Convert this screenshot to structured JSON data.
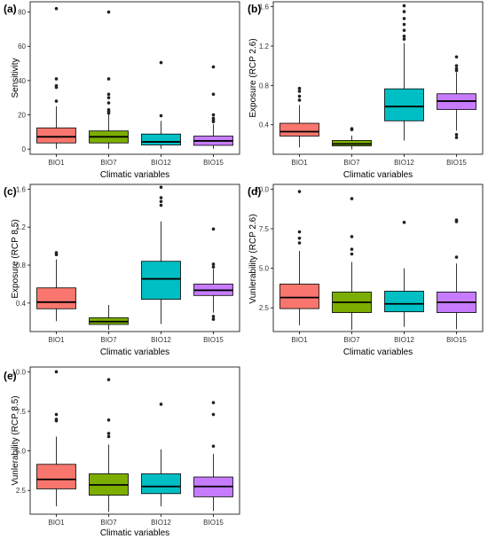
{
  "colors": {
    "BIO1": "#f8766d",
    "BIO7": "#7cae00",
    "BIO12": "#00bfc4",
    "BIO15": "#c77cff",
    "outline": "#000000",
    "points": "#222222"
  },
  "chart_data": [
    {
      "panel": "(a)",
      "type": "boxplot",
      "xlabel": "Climatic variables",
      "ylabel": "Sensitivity",
      "categories": [
        "BIO1",
        "BIO7",
        "BIO12",
        "BIO15"
      ],
      "ylim": [
        -3,
        86
      ],
      "yticks": [
        0,
        20,
        40,
        60,
        80
      ],
      "ytick_labels": [
        "0",
        "20",
        "40",
        "60",
        "80"
      ],
      "grid": false,
      "boxes": [
        {
          "q1": 3.6,
          "median": 7.2,
          "q3": 12.4,
          "whisker_low": 0.2,
          "whisker_high": 25.0,
          "outliers": [
            28,
            36,
            37,
            41,
            82
          ]
        },
        {
          "q1": 3.6,
          "median": 7.2,
          "q3": 10.6,
          "whisker_low": 0.2,
          "whisker_high": 20.0,
          "outliers": [
            21,
            22,
            23,
            27,
            30,
            32,
            41,
            80
          ]
        },
        {
          "q1": 2.4,
          "median": 4.2,
          "q3": 8.8,
          "whisker_low": 0.2,
          "whisker_high": 16.5,
          "outliers": [
            19.5,
            50.5
          ]
        },
        {
          "q1": 2.2,
          "median": 4.8,
          "q3": 7.6,
          "whisker_low": 0.2,
          "whisker_high": 14.5,
          "outliers": [
            16,
            17,
            18,
            20,
            32,
            48
          ]
        }
      ]
    },
    {
      "panel": "(b)",
      "type": "boxplot",
      "xlabel": "Climatic variables",
      "ylabel": "Exposure (RCP 2.6)",
      "categories": [
        "BIO1",
        "BIO7",
        "BIO12",
        "BIO15"
      ],
      "ylim": [
        0.1,
        1.65
      ],
      "yticks": [
        0.4,
        0.8,
        1.2,
        1.6
      ],
      "ytick_labels": [
        "0.4",
        "0.8",
        "1.2",
        "1.6"
      ],
      "grid": false,
      "boxes": [
        {
          "q1": 0.285,
          "median": 0.33,
          "q3": 0.415,
          "whisker_low": 0.17,
          "whisker_high": 0.6,
          "outliers": [
            0.65,
            0.69,
            0.74,
            0.77
          ]
        },
        {
          "q1": 0.185,
          "median": 0.205,
          "q3": 0.24,
          "whisker_low": 0.15,
          "whisker_high": 0.29,
          "outliers": [
            0.35,
            0.36
          ]
        },
        {
          "q1": 0.44,
          "median": 0.585,
          "q3": 0.765,
          "whisker_low": 0.24,
          "whisker_high": 1.23,
          "outliers": [
            1.27,
            1.3,
            1.36,
            1.42,
            1.48,
            1.55,
            1.61
          ]
        },
        {
          "q1": 0.555,
          "median": 0.64,
          "q3": 0.715,
          "whisker_low": 0.34,
          "whisker_high": 0.93,
          "outliers": [
            0.27,
            0.3,
            0.95,
            0.97,
            1.0,
            1.09
          ]
        }
      ]
    },
    {
      "panel": "(c)",
      "type": "boxplot",
      "xlabel": "Climatic variables",
      "ylabel": "Exposure (RCP 8.5)",
      "categories": [
        "BIO1",
        "BIO7",
        "BIO12",
        "BIO15"
      ],
      "ylim": [
        0.1,
        1.65
      ],
      "yticks": [
        0.4,
        0.8,
        1.2,
        1.6
      ],
      "ytick_labels": [
        "0.4",
        "0.8",
        "1.2",
        "1.6"
      ],
      "grid": false,
      "boxes": [
        {
          "q1": 0.34,
          "median": 0.41,
          "q3": 0.56,
          "whisker_low": 0.21,
          "whisker_high": 0.86,
          "outliers": [
            0.91,
            0.93
          ]
        },
        {
          "q1": 0.175,
          "median": 0.205,
          "q3": 0.245,
          "whisker_low": 0.12,
          "whisker_high": 0.38,
          "outliers": []
        },
        {
          "q1": 0.44,
          "median": 0.655,
          "q3": 0.84,
          "whisker_low": 0.18,
          "whisker_high": 1.26,
          "outliers": [
            1.43,
            1.47,
            1.51,
            1.62
          ]
        },
        {
          "q1": 0.48,
          "median": 0.535,
          "q3": 0.6,
          "whisker_low": 0.3,
          "whisker_high": 0.76,
          "outliers": [
            0.23,
            0.26,
            0.78,
            0.81,
            1.18
          ]
        }
      ]
    },
    {
      "panel": "(d)",
      "type": "boxplot",
      "xlabel": "Climatic variables",
      "ylabel": "Vunlerability (RCP 2.6)",
      "categories": [
        "BIO1",
        "BIO7",
        "BIO12",
        "BIO15"
      ],
      "ylim": [
        1.0,
        10.3
      ],
      "yticks": [
        2.5,
        5.0,
        7.5,
        10.0
      ],
      "ytick_labels": [
        "2.5",
        "5.0",
        "7.5",
        "10.0"
      ],
      "grid": false,
      "boxes": [
        {
          "q1": 2.45,
          "median": 3.15,
          "q3": 4.0,
          "whisker_low": 1.4,
          "whisker_high": 6.1,
          "outliers": [
            6.6,
            6.9,
            7.3,
            9.85
          ]
        },
        {
          "q1": 2.2,
          "median": 2.85,
          "q3": 3.5,
          "whisker_low": 1.1,
          "whisker_high": 5.4,
          "outliers": [
            5.9,
            6.2,
            7.0,
            9.4
          ]
        },
        {
          "q1": 2.25,
          "median": 2.75,
          "q3": 3.55,
          "whisker_low": 1.3,
          "whisker_high": 5.0,
          "outliers": [
            7.9
          ]
        },
        {
          "q1": 2.2,
          "median": 2.85,
          "q3": 3.5,
          "whisker_low": 1.15,
          "whisker_high": 5.3,
          "outliers": [
            5.7,
            7.95,
            8.05
          ]
        }
      ]
    },
    {
      "panel": "(e)",
      "type": "boxplot",
      "xlabel": "Climatic variables",
      "ylabel": "Vunlerability (RCP 8.5)",
      "categories": [
        "BIO1",
        "BIO7",
        "BIO12",
        "BIO15"
      ],
      "ylim": [
        1.0,
        10.3
      ],
      "yticks": [
        2.5,
        5.0,
        7.5,
        10.0
      ],
      "ytick_labels": [
        "2.5",
        "5.0",
        "7.5",
        "10.0"
      ],
      "grid": false,
      "boxes": [
        {
          "q1": 2.6,
          "median": 3.2,
          "q3": 4.15,
          "whisker_low": 1.5,
          "whisker_high": 5.9,
          "outliers": [
            6.9,
            7.0,
            7.3,
            10.0
          ]
        },
        {
          "q1": 2.2,
          "median": 2.85,
          "q3": 3.55,
          "whisker_low": 1.15,
          "whisker_high": 5.4,
          "outliers": [
            5.9,
            6.1,
            6.95,
            9.5
          ]
        },
        {
          "q1": 2.3,
          "median": 2.75,
          "q3": 3.55,
          "whisker_low": 1.5,
          "whisker_high": 5.1,
          "outliers": [
            7.95
          ]
        },
        {
          "q1": 2.1,
          "median": 2.75,
          "q3": 3.35,
          "whisker_low": 1.2,
          "whisker_high": 4.8,
          "outliers": [
            5.3,
            7.3,
            8.05
          ]
        }
      ]
    }
  ]
}
